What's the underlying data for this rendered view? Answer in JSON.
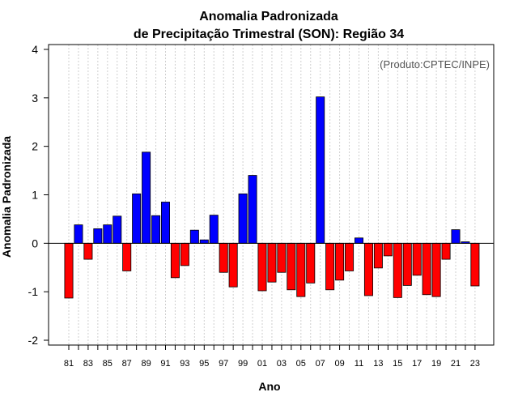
{
  "chart_data": {
    "type": "bar",
    "title": "Anomalia Padronizada",
    "subtitle": "de Precipitação Trimestral (SON): Região 34",
    "xlabel": "Ano",
    "ylabel": "Anomalia Padronizada",
    "annotation": "(Produto:CPTEC/INPE)",
    "ylim": [
      -2.1,
      4.1
    ],
    "yticks": [
      -2,
      -1,
      0,
      1,
      2,
      3,
      4
    ],
    "xtick_labels": [
      "81",
      "83",
      "85",
      "87",
      "89",
      "91",
      "93",
      "95",
      "97",
      "99",
      "01",
      "03",
      "05",
      "07",
      "09",
      "11",
      "13",
      "15",
      "17",
      "19",
      "21",
      "23"
    ],
    "categories": [
      "81",
      "82",
      "83",
      "84",
      "85",
      "86",
      "87",
      "88",
      "89",
      "90",
      "91",
      "92",
      "93",
      "94",
      "95",
      "96",
      "97",
      "98",
      "99",
      "00",
      "01",
      "02",
      "03",
      "04",
      "05",
      "06",
      "07",
      "08",
      "09",
      "10",
      "11",
      "12",
      "13",
      "14",
      "15",
      "16",
      "17",
      "18",
      "19",
      "20",
      "21",
      "22",
      "23"
    ],
    "values": [
      -1.13,
      0.38,
      -0.33,
      0.3,
      0.38,
      0.56,
      -0.57,
      1.02,
      1.88,
      0.57,
      0.85,
      -0.71,
      -0.46,
      0.27,
      0.07,
      0.58,
      -0.6,
      -0.9,
      1.02,
      1.4,
      -0.98,
      -0.8,
      -0.6,
      -0.96,
      -1.1,
      -0.82,
      3.02,
      -0.96,
      -0.76,
      -0.57,
      0.11,
      -1.08,
      -0.51,
      -0.26,
      -1.12,
      -0.87,
      -0.66,
      -1.06,
      -1.1,
      -0.33,
      0.28,
      0.03,
      -0.88
    ],
    "colors": {
      "positive": "#0000ff",
      "negative": "#ff0000"
    },
    "grid": true
  }
}
